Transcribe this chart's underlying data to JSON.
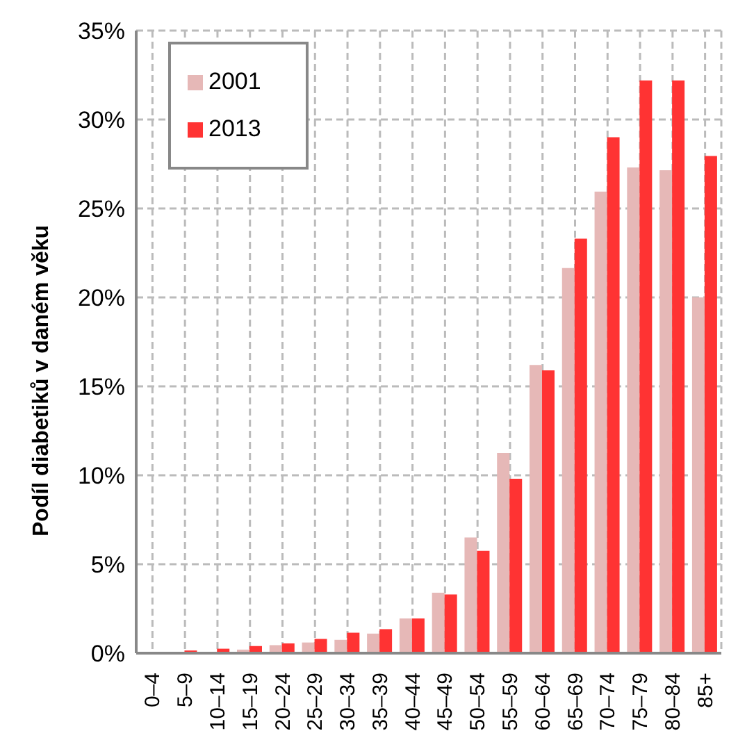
{
  "chart_data": {
    "type": "bar",
    "ylabel": "Podíl diabetiků v daném věku",
    "categories": [
      "0–4",
      "5–9",
      "10–14",
      "15–19",
      "20–24",
      "25–29",
      "30–34",
      "35–39",
      "40–44",
      "45–49",
      "50–54",
      "55–59",
      "60–64",
      "65–69",
      "70–74",
      "75–79",
      "80–84",
      "85+"
    ],
    "series": [
      {
        "name": "2001",
        "color": "#e6b8b7",
        "values": [
          null,
          null,
          null,
          0.2,
          0.45,
          0.6,
          0.75,
          1.1,
          1.95,
          3.4,
          6.5,
          11.25,
          16.2,
          21.65,
          25.95,
          27.3,
          27.15,
          20.0
        ]
      },
      {
        "name": "2013",
        "color": "#ff3333",
        "values": [
          null,
          0.15,
          0.25,
          0.4,
          0.55,
          0.8,
          1.15,
          1.35,
          1.95,
          3.3,
          5.75,
          9.8,
          15.9,
          23.3,
          29.0,
          32.2,
          32.2,
          27.95
        ]
      }
    ],
    "ylim": [
      0,
      35
    ],
    "yticks": [
      {
        "value": 0,
        "label": "0%"
      },
      {
        "value": 5,
        "label": "5%"
      },
      {
        "value": 10,
        "label": "10%"
      },
      {
        "value": 15,
        "label": "15%"
      },
      {
        "value": 20,
        "label": "20%"
      },
      {
        "value": 25,
        "label": "25%"
      },
      {
        "value": 30,
        "label": "30%"
      },
      {
        "value": 35,
        "label": "35%"
      }
    ],
    "grid": true,
    "legend": "top left"
  }
}
